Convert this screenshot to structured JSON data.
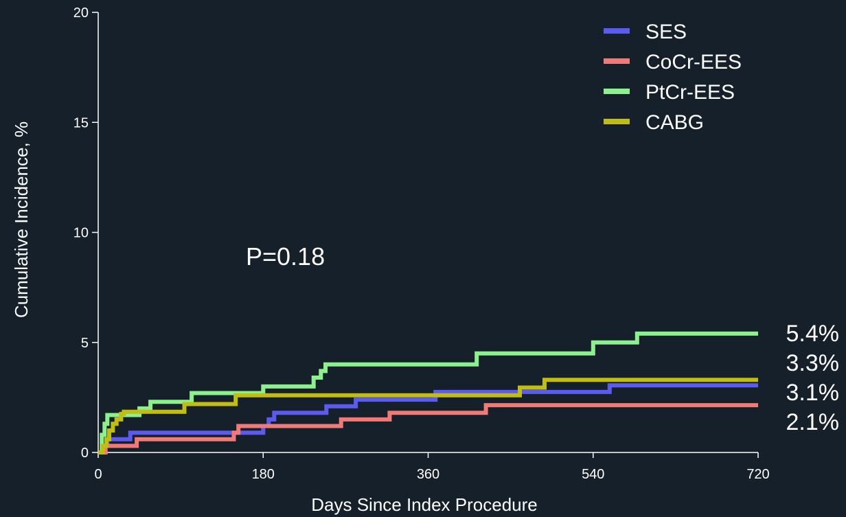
{
  "chart_data": {
    "type": "line",
    "title": "",
    "xlabel": "Days Since Index Procedure",
    "ylabel": "Cumulative Incidence, %",
    "xlim": [
      0,
      720
    ],
    "ylim": [
      0,
      20
    ],
    "x_ticks": [
      0,
      180,
      360,
      540,
      720
    ],
    "y_ticks": [
      0,
      5,
      10,
      15,
      20
    ],
    "grid": false,
    "legend_position": "top-right",
    "annotation": "P=0.18",
    "series": [
      {
        "name": "SES",
        "color": "#5b5bf0",
        "end_label": "3.1%",
        "points": [
          [
            0,
            0
          ],
          [
            5,
            0.3
          ],
          [
            10,
            0.6
          ],
          [
            30,
            0.6
          ],
          [
            35,
            0.9
          ],
          [
            175,
            0.9
          ],
          [
            180,
            1.2
          ],
          [
            186,
            1.5
          ],
          [
            192,
            1.8
          ],
          [
            246,
            1.8
          ],
          [
            249,
            2.1
          ],
          [
            278,
            2.1
          ],
          [
            281,
            2.4
          ],
          [
            365,
            2.4
          ],
          [
            368,
            2.75
          ],
          [
            555,
            2.75
          ],
          [
            558,
            3.05
          ],
          [
            720,
            3.05
          ]
        ]
      },
      {
        "name": "CoCr-EES",
        "color": "#f07a78",
        "end_label": "2.1%",
        "points": [
          [
            0,
            0
          ],
          [
            8,
            0.3
          ],
          [
            40,
            0.3
          ],
          [
            42,
            0.6
          ],
          [
            145,
            0.6
          ],
          [
            148,
            0.9
          ],
          [
            153,
            1.2
          ],
          [
            260,
            1.2
          ],
          [
            265,
            1.5
          ],
          [
            315,
            1.5
          ],
          [
            318,
            1.8
          ],
          [
            420,
            1.8
          ],
          [
            423,
            2.15
          ],
          [
            720,
            2.15
          ]
        ]
      },
      {
        "name": "PtCr-EES",
        "color": "#8cf08c",
        "end_label": "5.4%",
        "points": [
          [
            0,
            0
          ],
          [
            4,
            0.8
          ],
          [
            7,
            1.3
          ],
          [
            10,
            1.7
          ],
          [
            42,
            1.7
          ],
          [
            45,
            2.0
          ],
          [
            55,
            2.0
          ],
          [
            57,
            2.3
          ],
          [
            100,
            2.3
          ],
          [
            102,
            2.7
          ],
          [
            178,
            2.7
          ],
          [
            180,
            3.0
          ],
          [
            232,
            3.0
          ],
          [
            235,
            3.4
          ],
          [
            240,
            3.4
          ],
          [
            243,
            3.7
          ],
          [
            248,
            4.0
          ],
          [
            410,
            4.0
          ],
          [
            413,
            4.5
          ],
          [
            537,
            4.5
          ],
          [
            540,
            5.0
          ],
          [
            585,
            5.0
          ],
          [
            588,
            5.4
          ],
          [
            720,
            5.4
          ]
        ]
      },
      {
        "name": "CABG",
        "color": "#c2bd12",
        "end_label": "3.3%",
        "points": [
          [
            0,
            0
          ],
          [
            5,
            0.3
          ],
          [
            9,
            0.6
          ],
          [
            12,
            1.0
          ],
          [
            16,
            1.3
          ],
          [
            20,
            1.5
          ],
          [
            25,
            1.75
          ],
          [
            28,
            1.85
          ],
          [
            92,
            1.85
          ],
          [
            94,
            2.2
          ],
          [
            148,
            2.2
          ],
          [
            150,
            2.6
          ],
          [
            458,
            2.6
          ],
          [
            460,
            2.95
          ],
          [
            484,
            2.95
          ],
          [
            487,
            3.3
          ],
          [
            720,
            3.3
          ]
        ]
      }
    ]
  }
}
